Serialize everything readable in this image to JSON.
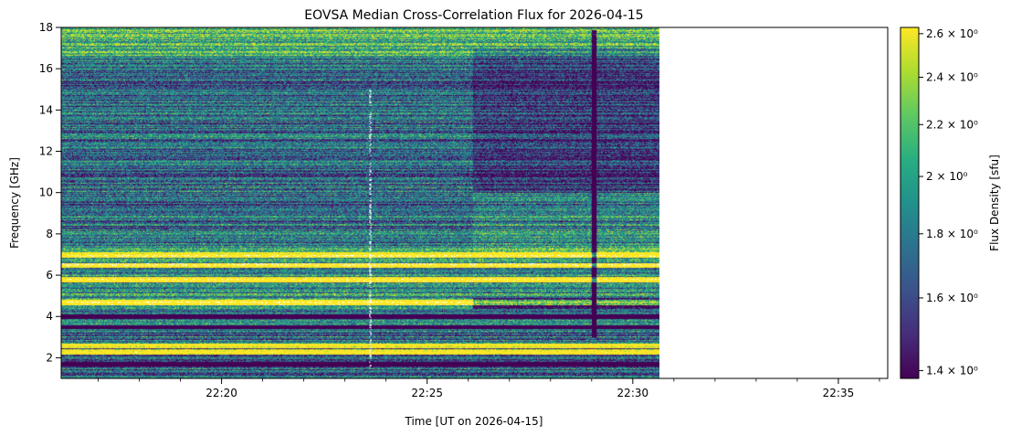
{
  "chart_data": {
    "type": "heatmap",
    "title": "EOVSA Median Cross-Correlation Flux for 2026-04-15",
    "xlabel": "Time [UT on 2026-04-15]",
    "ylabel": "Frequency [GHz]",
    "x_unit": "minutes after 22:00 UT",
    "xlim": [
      16.1,
      36.2
    ],
    "ylim": [
      1.0,
      18.0
    ],
    "data_end_minute": 30.65,
    "x_major_ticks": [
      {
        "value": 20,
        "label": "22:20"
      },
      {
        "value": 25,
        "label": "22:25"
      },
      {
        "value": 30,
        "label": "22:30"
      },
      {
        "value": 35,
        "label": "22:35"
      }
    ],
    "x_minor_ticks": [
      17,
      18,
      19,
      21,
      22,
      23,
      24,
      26,
      27,
      28,
      29,
      31,
      32,
      33,
      34,
      36
    ],
    "y_major_ticks": [
      {
        "value": 2,
        "label": "2"
      },
      {
        "value": 4,
        "label": "4"
      },
      {
        "value": 6,
        "label": "6"
      },
      {
        "value": 8,
        "label": "8"
      },
      {
        "value": 10,
        "label": "10"
      },
      {
        "value": 12,
        "label": "12"
      },
      {
        "value": 14,
        "label": "14"
      },
      {
        "value": 16,
        "label": "16"
      },
      {
        "value": 18,
        "label": "18"
      }
    ],
    "colorbar": {
      "label": "Flux Density [sfu]",
      "scale": "log",
      "colormap": "viridis",
      "vmin": 1.38,
      "vmax": 2.63,
      "ticks": [
        {
          "value": 1.4,
          "label": "1.4 × 10⁰"
        },
        {
          "value": 1.6,
          "label": "1.6 × 10⁰"
        },
        {
          "value": 1.8,
          "label": "1.8 × 10⁰"
        },
        {
          "value": 2.0,
          "label": "2 × 10⁰"
        },
        {
          "value": 2.2,
          "label": "2.2 × 10⁰"
        },
        {
          "value": 2.4,
          "label": "2.4 × 10⁰"
        },
        {
          "value": 2.6,
          "label": "2.6 × 10⁰"
        }
      ]
    },
    "features": {
      "saturated_bands_ghz": [
        4.7,
        5.8,
        6.5,
        7.0,
        2.3,
        2.6
      ],
      "dark_bands_ghz": [
        1.7,
        3.5,
        4.0
      ],
      "broadband_dip_minute": 29.05,
      "spectral_change_minute": 26.1,
      "rfi_spike_minute": 23.6
    }
  }
}
